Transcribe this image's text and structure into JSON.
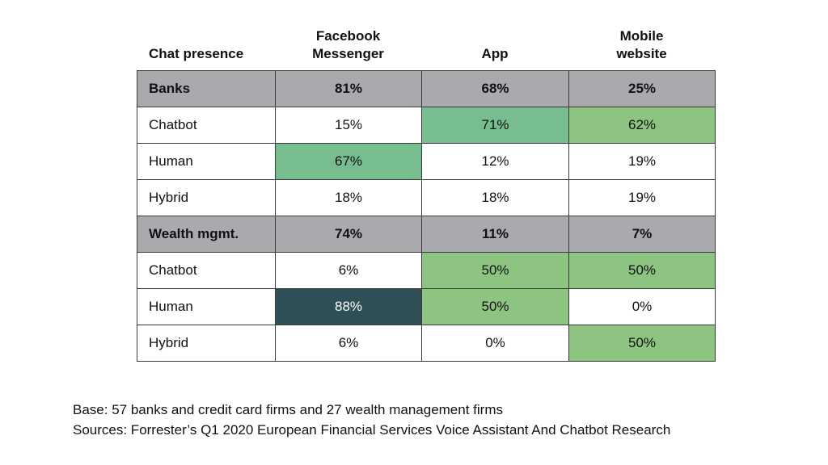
{
  "header": {
    "row_label": "Chat presence",
    "columns": [
      [
        "Facebook",
        "Messenger"
      ],
      [
        "App"
      ],
      [
        "Mobile",
        "website"
      ]
    ]
  },
  "colors": {
    "group_row": "#a9a9ae",
    "light_green": "#8ec482",
    "mid_green": "#78bd8f",
    "dark_teal": "#2f4f57",
    "white": "#ffffff"
  },
  "chart_data": {
    "type": "table",
    "columns": [
      "Chat presence",
      "Facebook Messenger",
      "App",
      "Mobile website"
    ],
    "rows": [
      {
        "label": "Banks",
        "group": true,
        "cells": [
          {
            "text": "81%",
            "bg": "group"
          },
          {
            "text": "68%",
            "bg": "group"
          },
          {
            "text": "25%",
            "bg": "group"
          }
        ]
      },
      {
        "label": "Chatbot",
        "group": false,
        "cells": [
          {
            "text": "15%",
            "bg": "white"
          },
          {
            "text": "71%",
            "bg": "mid_green"
          },
          {
            "text": "62%",
            "bg": "light_green"
          }
        ]
      },
      {
        "label": "Human",
        "group": false,
        "cells": [
          {
            "text": "67%",
            "bg": "mid_green"
          },
          {
            "text": "12%",
            "bg": "white"
          },
          {
            "text": "19%",
            "bg": "white"
          }
        ]
      },
      {
        "label": "Hybrid",
        "group": false,
        "cells": [
          {
            "text": "18%",
            "bg": "white"
          },
          {
            "text": "18%",
            "bg": "white"
          },
          {
            "text": "19%",
            "bg": "white"
          }
        ]
      },
      {
        "label": "Wealth mgmt.",
        "group": true,
        "cells": [
          {
            "text": "74%",
            "bg": "group"
          },
          {
            "text": "11%",
            "bg": "group"
          },
          {
            "text": "7%",
            "bg": "group"
          }
        ]
      },
      {
        "label": "Chatbot",
        "group": false,
        "cells": [
          {
            "text": "6%",
            "bg": "white"
          },
          {
            "text": "50%",
            "bg": "light_green"
          },
          {
            "text": "50%",
            "bg": "light_green"
          }
        ]
      },
      {
        "label": "Human",
        "group": false,
        "cells": [
          {
            "text": "88%",
            "bg": "dark_teal"
          },
          {
            "text": "50%",
            "bg": "light_green"
          },
          {
            "text": "0%",
            "bg": "white"
          }
        ]
      },
      {
        "label": "Hybrid",
        "group": false,
        "cells": [
          {
            "text": "6%",
            "bg": "white"
          },
          {
            "text": "0%",
            "bg": "white"
          },
          {
            "text": "50%",
            "bg": "light_green"
          }
        ]
      }
    ]
  },
  "footer": {
    "base": "Base: 57 banks and credit card firms and 27 wealth management firms",
    "sources": "Sources: Forrester’s Q1 2020 European Financial Services Voice Assistant And Chatbot Research"
  }
}
